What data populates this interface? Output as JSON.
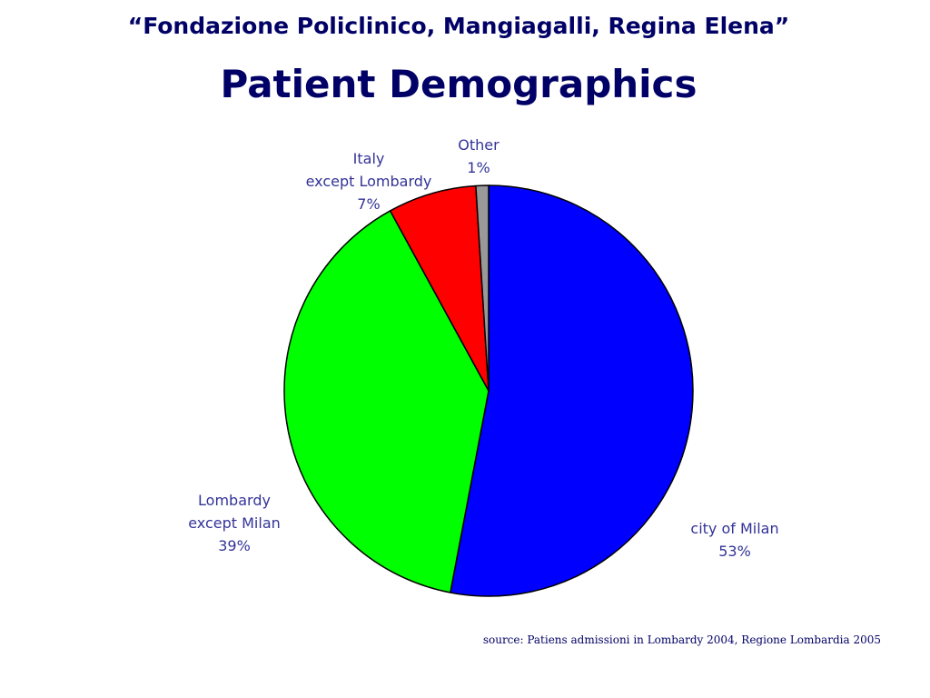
{
  "header": {
    "subtitle": "“Fondazione Policlinico, Mangiagalli, Regina Elena”",
    "title": "Patient Demographics"
  },
  "chart_data": {
    "type": "pie",
    "start_angle_deg": 0,
    "direction": "clockwise",
    "slices": [
      {
        "label_lines": [
          "city of Milan",
          "53%"
        ],
        "value": 53,
        "color": "#0000ff"
      },
      {
        "label_lines": [
          "Lombardy",
          "except Milan",
          "39%"
        ],
        "value": 39,
        "color": "#00ff00"
      },
      {
        "label_lines": [
          "Italy",
          "except Lombardy",
          "7%"
        ],
        "value": 7,
        "color": "#ff0000"
      },
      {
        "label_lines": [
          "Other",
          "1%"
        ],
        "value": 1,
        "color": "#999999"
      }
    ],
    "label_color": "#333399",
    "outline_color": "#000000"
  },
  "footer": {
    "source": "source: Patiens admissioni in Lombardy 2004, Regione Lombardia 2005"
  }
}
